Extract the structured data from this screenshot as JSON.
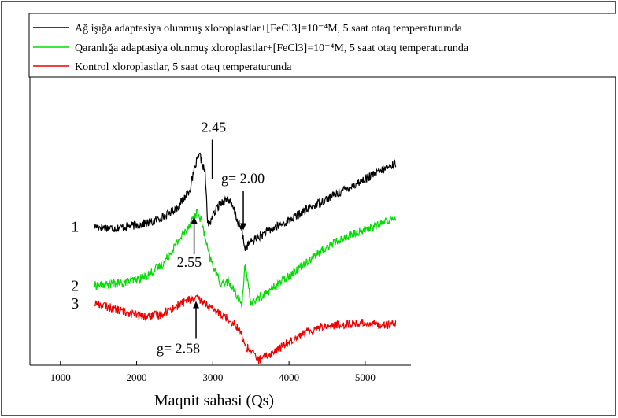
{
  "chart_data": {
    "type": "line",
    "title": "",
    "xlabel": "Maqnit sahəsi (Qs)",
    "ylabel": "",
    "xlim": [
      600,
      5600
    ],
    "x_ticks": [
      1000,
      2000,
      3000,
      4000,
      5000
    ],
    "grid": false,
    "legend_position": "top",
    "series": [
      {
        "name": "Ağ işığa adaptasiya olunmuş xloroplastlar+[FeCl3]=10⁻⁴M, 5 saat otaq temperaturunda",
        "label": "1",
        "color": "#000000",
        "x": [
          1450,
          1700,
          1900,
          2200,
          2400,
          2550,
          2700,
          2780,
          2830,
          2870,
          2900,
          2930,
          2950,
          2980,
          3100,
          3200,
          3280,
          3330,
          3380,
          3420,
          3500,
          3700,
          4000,
          4300,
          4600,
          4900,
          5200,
          5400
        ],
        "y": [
          -0.35,
          -0.4,
          -0.35,
          -0.25,
          -0.05,
          0.15,
          0.6,
          1.25,
          1.45,
          1.2,
          1.0,
          -0.2,
          -0.35,
          -0.15,
          0.25,
          0.35,
          0.05,
          -0.25,
          -0.45,
          -0.9,
          -0.75,
          -0.5,
          -0.2,
          0.15,
          0.45,
          0.75,
          1.05,
          1.25
        ]
      },
      {
        "name": "Qaranlığa adaptasiya olunmuş xloroplastlar+[FeCl3]=10⁻⁴M, 5 saat otaq temperaturunda",
        "label": "2",
        "color": "#00dd00",
        "x": [
          1450,
          1800,
          2100,
          2350,
          2500,
          2650,
          2750,
          2800,
          2850,
          2950,
          3100,
          3200,
          3300,
          3380,
          3420,
          3500,
          3700,
          4000,
          4300,
          4600,
          4900,
          5200,
          5400
        ],
        "y": [
          -1.85,
          -1.8,
          -1.65,
          -1.3,
          -0.85,
          -0.45,
          -0.1,
          0.0,
          -0.2,
          -1.1,
          -1.8,
          -1.75,
          -2.05,
          -2.35,
          -1.35,
          -2.3,
          -2.05,
          -1.6,
          -1.15,
          -0.75,
          -0.5,
          -0.3,
          -0.1
        ]
      },
      {
        "name": "Kontrol xloroplastlar, 5 saat otaq temperaturunda",
        "label": "3",
        "color": "#ee0000",
        "x": [
          1450,
          1800,
          2100,
          2300,
          2500,
          2700,
          2800,
          2900,
          3000,
          3100,
          3200,
          3300,
          3380,
          3420,
          3500,
          3600,
          3800,
          4100,
          4400,
          4700,
          5000,
          5200,
          5400
        ],
        "y": [
          -2.3,
          -2.5,
          -2.65,
          -2.6,
          -2.4,
          -2.2,
          -2.2,
          -2.3,
          -2.5,
          -2.55,
          -2.7,
          -2.85,
          -3.1,
          -3.4,
          -3.5,
          -3.75,
          -3.55,
          -3.15,
          -2.9,
          -2.85,
          -2.8,
          -2.85,
          -2.85
        ]
      }
    ],
    "annotations": [
      {
        "text": "2.45",
        "x": 2910,
        "y": 1.45,
        "type": "marker-line"
      },
      {
        "text": "g= 2.00",
        "x": 3400,
        "y": -0.45,
        "type": "arrow-down"
      },
      {
        "text": "2.55",
        "x": 2755,
        "y": -0.1,
        "type": "arrow-up"
      },
      {
        "text": "g= 2.58",
        "x": 2780,
        "y": -2.25,
        "type": "arrow-up"
      }
    ]
  }
}
